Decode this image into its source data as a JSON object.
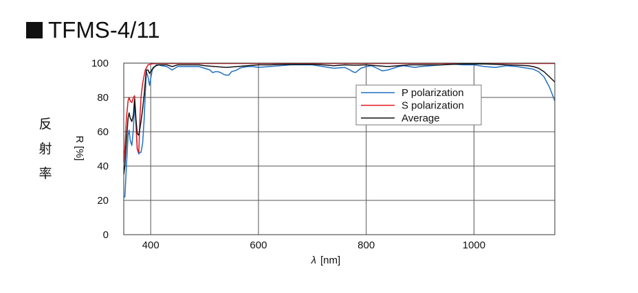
{
  "title": "TFMS-4/11",
  "side_label": [
    "反",
    "射",
    "率"
  ],
  "chart_data": {
    "type": "line",
    "title": "TFMS-4/11",
    "xlabel_symbol": "λ",
    "xlabel_unit": "[nm]",
    "ylabel": "R [%]",
    "xlim": [
      350,
      1150
    ],
    "ylim": [
      0,
      100
    ],
    "xticks": [
      400,
      600,
      800,
      1000
    ],
    "yticks": [
      0,
      20,
      40,
      60,
      80,
      100
    ],
    "grid": true,
    "legend_position": "upper-right",
    "series": [
      {
        "name": "P polarization",
        "color": "#1f6fc0",
        "x": [
          350,
          352,
          355,
          358,
          360,
          362,
          365,
          368,
          370,
          372,
          375,
          378,
          380,
          382,
          385,
          388,
          390,
          392,
          395,
          398,
          400,
          403,
          405,
          408,
          410,
          415,
          420,
          430,
          440,
          450,
          460,
          470,
          480,
          490,
          500,
          510,
          515,
          520,
          525,
          530,
          535,
          540,
          545,
          550,
          555,
          560,
          565,
          570,
          580,
          590,
          600,
          620,
          640,
          660,
          680,
          700,
          720,
          740,
          760,
          770,
          775,
          780,
          790,
          800,
          810,
          820,
          830,
          840,
          850,
          860,
          870,
          880,
          890,
          900,
          920,
          940,
          960,
          980,
          1000,
          1020,
          1040,
          1060,
          1080,
          1100,
          1110,
          1120,
          1130,
          1140,
          1150
        ],
        "y": [
          22,
          22,
          40,
          58,
          61,
          55,
          52,
          62,
          77,
          68,
          50,
          47,
          48,
          48,
          53,
          68,
          82,
          95,
          92,
          87,
          91,
          96,
          97,
          98,
          99,
          99,
          98.5,
          98,
          96,
          98,
          98,
          98,
          98,
          98,
          97,
          96,
          94.5,
          95,
          95,
          94.5,
          93.5,
          93,
          93,
          95,
          95.5,
          96,
          97,
          97.5,
          98,
          98,
          97.5,
          98,
          98.5,
          99,
          99,
          99,
          98,
          97,
          97.5,
          96,
          95,
          94.5,
          97,
          98,
          98.5,
          97,
          95.5,
          96,
          97,
          98,
          98.5,
          98,
          97.5,
          98,
          98.5,
          99,
          99.5,
          99,
          99,
          98,
          97.5,
          98.5,
          98,
          97,
          96.5,
          95,
          92,
          86,
          78
        ]
      },
      {
        "name": "S polarization",
        "color": "#e0141c",
        "x": [
          350,
          352,
          355,
          358,
          360,
          362,
          365,
          368,
          370,
          372,
          375,
          378,
          380,
          382,
          385,
          388,
          390,
          395,
          400,
          410,
          420,
          440,
          460,
          500,
          600,
          700,
          800,
          900,
          1000,
          1100,
          1150
        ],
        "y": [
          42,
          50,
          68,
          78,
          80,
          78,
          77,
          80,
          81,
          72,
          50,
          48,
          68,
          80,
          88,
          93,
          96,
          99,
          99.5,
          99.8,
          99.8,
          99.8,
          99.8,
          99.8,
          99.8,
          99.8,
          99.8,
          99.8,
          99.8,
          99.8,
          99.8
        ]
      },
      {
        "name": "Average",
        "color": "#111111",
        "x": [
          350,
          352,
          355,
          358,
          360,
          362,
          365,
          368,
          370,
          372,
          375,
          378,
          380,
          382,
          385,
          388,
          390,
          392,
          395,
          398,
          400,
          405,
          410,
          415,
          420,
          430,
          440,
          450,
          470,
          490,
          500,
          520,
          540,
          560,
          580,
          600,
          620,
          640,
          660,
          680,
          700,
          720,
          740,
          760,
          780,
          800,
          820,
          840,
          860,
          880,
          900,
          920,
          940,
          960,
          980,
          1000,
          1020,
          1040,
          1060,
          1080,
          1100,
          1110,
          1120,
          1130,
          1140,
          1150
        ],
        "y": [
          35,
          40,
          55,
          68,
          71,
          68,
          66,
          70,
          79,
          70,
          59,
          58,
          62,
          66,
          73,
          82,
          89,
          96,
          96,
          94,
          95,
          97.5,
          98.5,
          99,
          99,
          99,
          98,
          99,
          99,
          99,
          98.5,
          98,
          97.5,
          98,
          98.5,
          99,
          99,
          99.2,
          99.3,
          99.3,
          99.3,
          99,
          98.5,
          99,
          98.8,
          99,
          98.5,
          98,
          98.5,
          99,
          99,
          99,
          99,
          99.3,
          99.5,
          99.5,
          99.5,
          99.3,
          99,
          98.8,
          98.5,
          98,
          97,
          95,
          92,
          89
        ]
      }
    ]
  }
}
